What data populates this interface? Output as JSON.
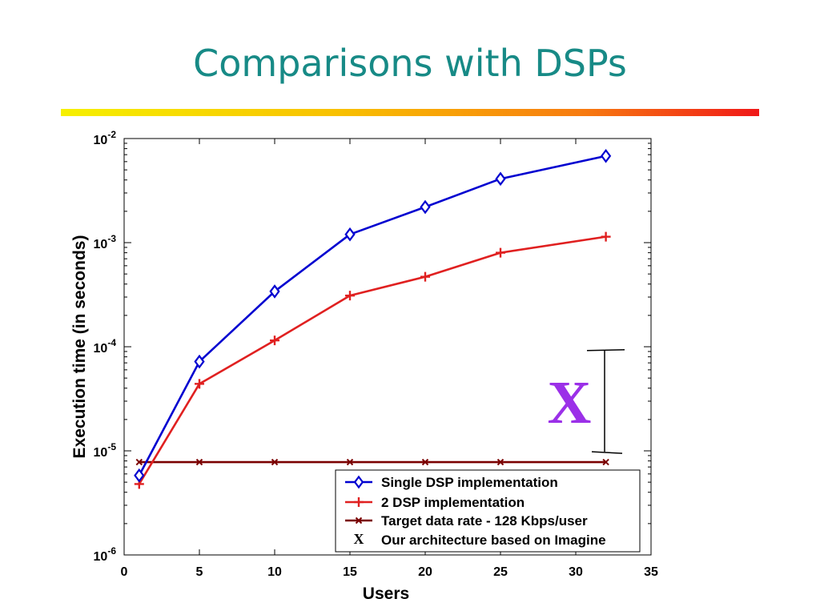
{
  "slide": {
    "title": "Comparisons with DSPs"
  },
  "chart_data": {
    "type": "line",
    "xlabel": "Users",
    "ylabel": "Execution time (in seconds)",
    "xlim": [
      0,
      35
    ],
    "ylim": [
      1e-06,
      0.01
    ],
    "yscale": "log",
    "grid": false,
    "legend_position": "bottom-right",
    "x_ticks": [
      "0",
      "5",
      "10",
      "15",
      "20",
      "25",
      "30",
      "35"
    ],
    "y_ticks": [
      {
        "base": "10",
        "exp": "-6"
      },
      {
        "base": "10",
        "exp": "-5"
      },
      {
        "base": "10",
        "exp": "-4"
      },
      {
        "base": "10",
        "exp": "-3"
      },
      {
        "base": "10",
        "exp": "-2"
      }
    ],
    "series": [
      {
        "name": "Single DSP implementation",
        "color": "#0000d0",
        "marker": "diamond",
        "x": [
          1,
          5,
          10,
          15,
          20,
          25,
          32
        ],
        "y": [
          5.8e-06,
          7.2e-05,
          0.00034,
          0.0012,
          0.0022,
          0.0041,
          0.0068
        ]
      },
      {
        "name": "2 DSP implementation",
        "color": "#e02020",
        "marker": "plus",
        "x": [
          1,
          5,
          10,
          15,
          20,
          25,
          32
        ],
        "y": [
          4.8e-06,
          4.4e-05,
          0.000115,
          0.00031,
          0.00047,
          0.0008,
          0.00114
        ]
      },
      {
        "name": "Target data rate - 128 Kbps/user",
        "color": "#7a0000",
        "marker": "x",
        "x": [
          1,
          5,
          10,
          15,
          20,
          25,
          32
        ],
        "y": [
          7.8e-06,
          7.8e-06,
          7.8e-06,
          7.8e-06,
          7.8e-06,
          7.8e-06,
          7.8e-06
        ]
      }
    ],
    "annotation": {
      "symbol": "X",
      "color": "#9b30e8",
      "legend_label": "Our architecture based on Imagine",
      "x": 32,
      "y_range": [
        9.8e-06,
        9.2e-05
      ]
    }
  }
}
